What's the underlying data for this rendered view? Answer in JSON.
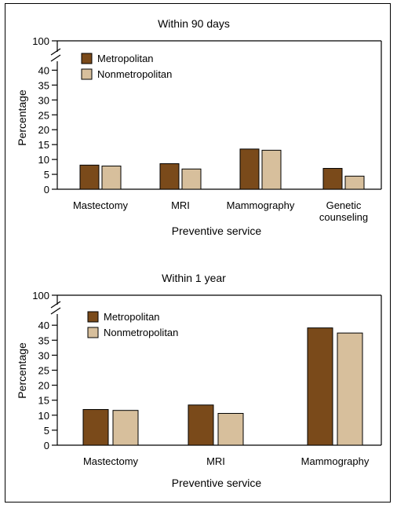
{
  "colors": {
    "metropolitan": "#7a4a1a",
    "nonmetropolitan": "#d7bf9c",
    "axis": "#000000"
  },
  "chart_data": [
    {
      "type": "bar",
      "title": "Within 90 days",
      "xlabel": "Preventive service",
      "ylabel": "Percentage",
      "categories": [
        "Mastectomy",
        "MRI",
        "Mammography",
        "Genetic counseling"
      ],
      "category_lines": [
        [
          "Mastectomy"
        ],
        [
          "MRI"
        ],
        [
          "Mammography"
        ],
        [
          "Genetic",
          "counseling"
        ]
      ],
      "series": [
        {
          "name": "Metropolitan",
          "values": [
            8.1,
            8.6,
            13.5,
            7.0
          ]
        },
        {
          "name": "Nonmetropolitan",
          "values": [
            7.8,
            6.8,
            13.1,
            4.4
          ]
        }
      ],
      "yticks": [
        0,
        5,
        10,
        15,
        20,
        25,
        30,
        35,
        40
      ],
      "ybreak_label": 100,
      "ylim": [
        0,
        100
      ],
      "axis_break": true,
      "legend": "top-left",
      "grid": false
    },
    {
      "type": "bar",
      "title": "Within 1 year",
      "xlabel": "Preventive service",
      "ylabel": "Percentage",
      "categories": [
        "Mastectomy",
        "MRI",
        "Mammography"
      ],
      "category_lines": [
        [
          "Mastectomy"
        ],
        [
          "MRI"
        ],
        [
          "Mammography"
        ]
      ],
      "series": [
        {
          "name": "Metropolitan",
          "values": [
            11.9,
            13.4,
            39.1
          ]
        },
        {
          "name": "Nonmetropolitan",
          "values": [
            11.6,
            10.6,
            37.4
          ]
        }
      ],
      "yticks": [
        0,
        5,
        10,
        15,
        20,
        25,
        30,
        35,
        40
      ],
      "ybreak_label": 100,
      "ylim": [
        0,
        100
      ],
      "axis_break": true,
      "legend": "top-left",
      "grid": false
    }
  ]
}
